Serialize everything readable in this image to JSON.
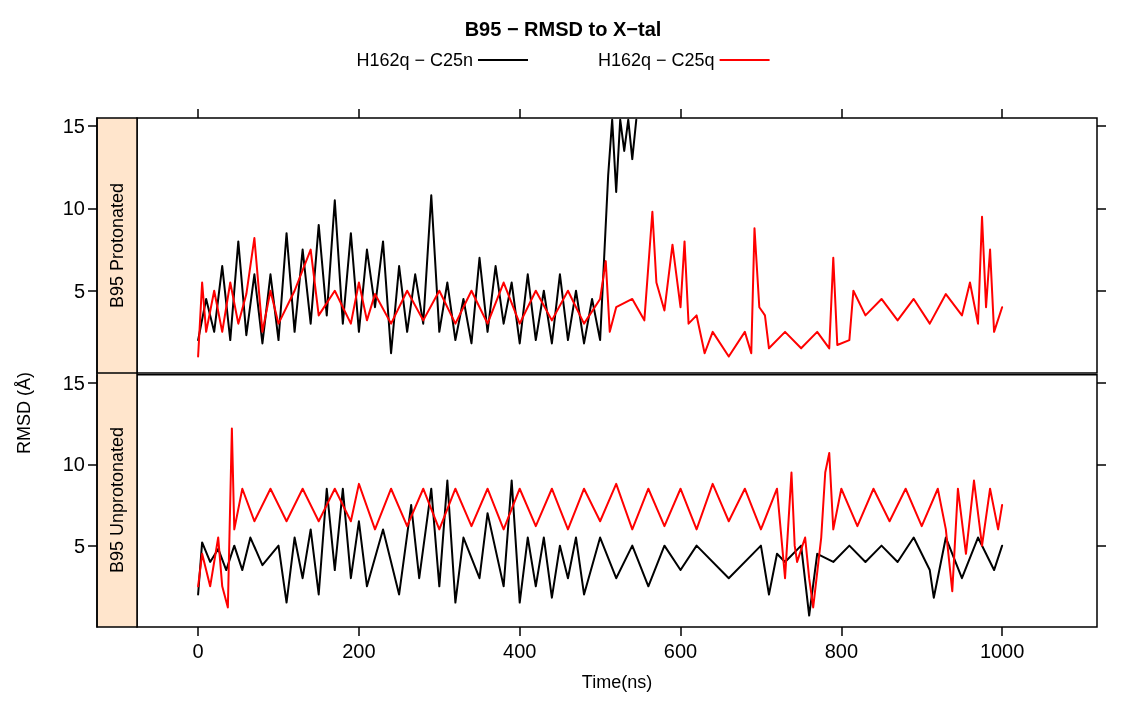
{
  "chart_data": [
    {
      "type": "line",
      "title": "B95 − RMSD to X−tal",
      "subtitle": "B95 Protonated",
      "ylabel": "RMSD (Å)",
      "xlim": [
        -76,
        1118
      ],
      "xticks": [
        0,
        200,
        400,
        600,
        800,
        1000
      ],
      "ylim": [
        0,
        15.5
      ],
      "yticks": [
        5,
        10,
        15
      ],
      "tick_labels": "y",
      "grid": false,
      "legend": "top",
      "marker": "none",
      "line_style": "solid",
      "series": [
        {
          "name": "H162q − C25n",
          "color": "#000000",
          "x": [
            0,
            10,
            20,
            30,
            40,
            50,
            60,
            70,
            80,
            90,
            100,
            110,
            120,
            130,
            140,
            150,
            160,
            170,
            180,
            190,
            200,
            210,
            220,
            230,
            240,
            250,
            260,
            270,
            280,
            290,
            300,
            310,
            320,
            330,
            340,
            350,
            360,
            370,
            380,
            390,
            400,
            410,
            420,
            430,
            440,
            450,
            460,
            470,
            480,
            490,
            500,
            505,
            510,
            515,
            520,
            525,
            530,
            535,
            540,
            545
          ],
          "values": [
            2.0,
            4.5,
            2.5,
            6.5,
            2.0,
            8.0,
            2.3,
            6.0,
            1.8,
            6.0,
            2.0,
            8.5,
            2.5,
            7.5,
            3.0,
            9.0,
            3.5,
            10.5,
            3.0,
            8.5,
            2.5,
            7.5,
            4.0,
            8.0,
            1.2,
            6.5,
            2.5,
            6.0,
            3.0,
            10.8,
            2.5,
            5.5,
            2.0,
            4.5,
            1.8,
            7.0,
            2.5,
            6.5,
            3.0,
            5.5,
            1.8,
            6.0,
            2.0,
            5.0,
            1.8,
            6.0,
            2.0,
            5.0,
            1.8,
            4.5,
            2.0,
            7.0,
            12.0,
            15.4,
            11.0,
            15.4,
            13.5,
            15.4,
            13.0,
            15.4
          ]
        },
        {
          "name": "H162q − C25q",
          "color": "#ff0000",
          "x": [
            0,
            5,
            10,
            20,
            30,
            40,
            50,
            60,
            70,
            80,
            90,
            100,
            120,
            140,
            150,
            170,
            190,
            200,
            210,
            220,
            240,
            260,
            280,
            300,
            320,
            340,
            360,
            380,
            400,
            420,
            440,
            460,
            480,
            500,
            507,
            512,
            520,
            540,
            555,
            565,
            570,
            580,
            590,
            600,
            605,
            610,
            620,
            630,
            640,
            660,
            680,
            688,
            692,
            698,
            705,
            710,
            730,
            750,
            770,
            785,
            790,
            795,
            810,
            815,
            830,
            850,
            870,
            890,
            910,
            930,
            950,
            960,
            970,
            975,
            980,
            985,
            990,
            1000
          ],
          "values": [
            1.0,
            5.5,
            2.5,
            5.0,
            2.5,
            5.5,
            3.0,
            4.8,
            8.2,
            2.5,
            5.0,
            3.0,
            5.0,
            7.5,
            3.5,
            5.0,
            3.0,
            5.5,
            3.2,
            4.8,
            3.0,
            5.0,
            3.2,
            5.0,
            3.0,
            5.0,
            3.0,
            5.5,
            3.0,
            5.0,
            3.2,
            5.0,
            3.0,
            4.5,
            6.8,
            2.5,
            4.0,
            4.5,
            3.2,
            9.8,
            5.5,
            3.8,
            7.8,
            4.0,
            8.0,
            3.0,
            3.5,
            1.2,
            2.5,
            1.0,
            2.5,
            1.2,
            8.8,
            4.0,
            3.5,
            1.5,
            2.5,
            1.5,
            2.5,
            1.5,
            7.0,
            1.7,
            2.0,
            5.0,
            3.5,
            4.5,
            3.2,
            4.5,
            3.0,
            4.8,
            3.5,
            5.5,
            3.0,
            9.5,
            4.0,
            7.5,
            2.5,
            4.0
          ]
        }
      ]
    },
    {
      "type": "line",
      "subtitle": "B95 Unprotonated",
      "xlabel": "Time(ns)",
      "xlim": [
        -76,
        1118
      ],
      "xticks": [
        0,
        200,
        400,
        600,
        800,
        1000
      ],
      "ylim": [
        0,
        15.5
      ],
      "yticks": [
        5,
        10,
        15
      ],
      "grid": false,
      "marker": "none",
      "line_style": "solid",
      "series": [
        {
          "color": "#000000",
          "x": [
            0,
            5,
            15,
            25,
            35,
            45,
            55,
            65,
            80,
            100,
            110,
            120,
            130,
            140,
            150,
            160,
            170,
            180,
            190,
            200,
            210,
            230,
            250,
            265,
            275,
            290,
            300,
            310,
            320,
            330,
            350,
            360,
            380,
            390,
            400,
            410,
            420,
            430,
            440,
            450,
            460,
            470,
            480,
            500,
            520,
            540,
            560,
            580,
            600,
            620,
            660,
            700,
            710,
            720,
            730,
            750,
            760,
            770,
            790,
            810,
            830,
            850,
            870,
            890,
            910,
            915,
            930,
            950,
            970,
            990,
            1000
          ],
          "values": [
            2.0,
            5.2,
            4.0,
            4.8,
            3.5,
            5.0,
            3.5,
            5.5,
            3.8,
            5.0,
            1.5,
            5.5,
            3.0,
            6.0,
            2.0,
            8.5,
            3.5,
            8.5,
            3.0,
            6.5,
            2.5,
            6.0,
            2.0,
            7.5,
            3.0,
            8.5,
            2.5,
            9.0,
            1.5,
            5.5,
            3.0,
            7.0,
            2.5,
            9.0,
            1.5,
            5.5,
            2.5,
            5.5,
            1.8,
            5.0,
            3.0,
            5.5,
            2.0,
            5.5,
            3.0,
            5.0,
            2.5,
            5.0,
            3.5,
            5.0,
            3.0,
            5.0,
            2.0,
            4.5,
            4.0,
            5.0,
            0.7,
            4.5,
            4.0,
            5.0,
            4.0,
            5.0,
            4.0,
            5.5,
            3.5,
            1.8,
            5.5,
            3.0,
            5.5,
            3.5,
            5.0
          ]
        },
        {
          "color": "#ff0000",
          "x": [
            0,
            5,
            15,
            25,
            30,
            37,
            42,
            45,
            55,
            70,
            90,
            110,
            130,
            150,
            170,
            190,
            200,
            220,
            240,
            260,
            280,
            300,
            320,
            340,
            360,
            380,
            400,
            420,
            440,
            460,
            480,
            500,
            520,
            540,
            560,
            580,
            600,
            620,
            640,
            660,
            680,
            700,
            720,
            730,
            738,
            742,
            745,
            755,
            760,
            765,
            775,
            780,
            785,
            790,
            800,
            820,
            840,
            860,
            880,
            900,
            920,
            930,
            938,
            945,
            955,
            965,
            975,
            985,
            995,
            1000
          ],
          "values": [
            2.5,
            4.5,
            2.5,
            5.5,
            2.5,
            1.2,
            12.2,
            6.0,
            8.5,
            6.5,
            8.5,
            6.5,
            8.5,
            6.5,
            8.5,
            6.5,
            8.8,
            6.0,
            8.5,
            6.2,
            8.5,
            6.0,
            8.5,
            6.2,
            8.5,
            6.0,
            8.5,
            6.2,
            8.5,
            6.0,
            8.5,
            6.5,
            8.8,
            6.0,
            8.5,
            6.2,
            8.5,
            6.0,
            8.8,
            6.5,
            8.5,
            6.0,
            8.5,
            3.0,
            9.5,
            5.0,
            4.0,
            5.5,
            3.0,
            1.2,
            5.5,
            9.5,
            10.7,
            6.0,
            8.5,
            6.2,
            8.5,
            6.5,
            8.5,
            6.2,
            8.5,
            6.0,
            2.2,
            8.5,
            4.5,
            9.0,
            5.0,
            8.5,
            6.0,
            7.5
          ]
        }
      ]
    }
  ]
}
